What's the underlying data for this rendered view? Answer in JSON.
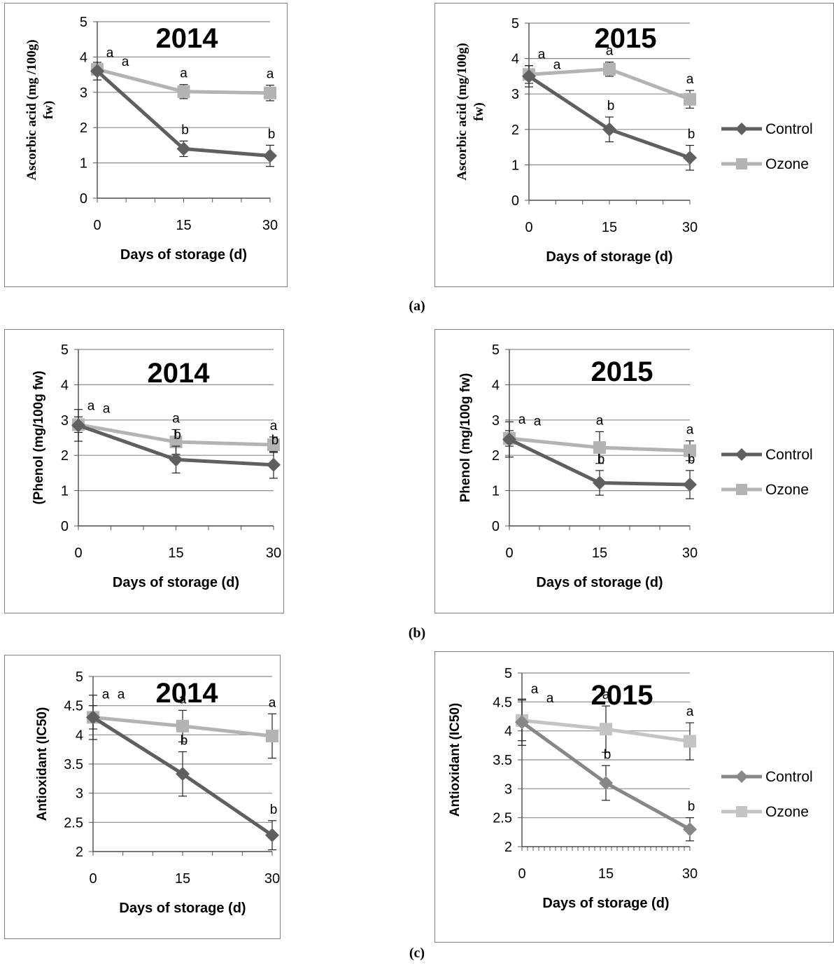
{
  "captions": [
    "(a)",
    "(b)",
    "(c)"
  ],
  "legend": {
    "control": "Control",
    "ozone": "Ozone"
  },
  "colors": {
    "control": "#5f5f5f",
    "ozone": "#b3b3b3",
    "control_c2015": "#878787",
    "ozone_c2015": "#c4c4c4",
    "grid": "#8c8c8c"
  },
  "chart_data": [
    {
      "type": "line",
      "title": "2014",
      "xlabel": "Days of storage (d)",
      "ylabel_lines": [
        "Ascorbic acid (mg /100g)",
        "fw)"
      ],
      "x": [
        0,
        15,
        30
      ],
      "ylim": [
        0,
        5
      ],
      "yticks": [
        "0",
        "1",
        "2",
        "3",
        "4",
        "5"
      ],
      "xticks": [
        "0",
        "15",
        "30"
      ],
      "series": [
        {
          "name": "Control",
          "values": [
            3.6,
            1.4,
            1.2
          ],
          "err": [
            0.25,
            0.22,
            0.3
          ],
          "letters": [
            "a",
            "b",
            "b"
          ]
        },
        {
          "name": "Ozone",
          "values": [
            3.65,
            3.02,
            2.98
          ],
          "err": [
            0.15,
            0.2,
            0.22
          ],
          "letters": [
            "a",
            "a",
            "a"
          ]
        }
      ]
    },
    {
      "type": "line",
      "title": "2015",
      "xlabel": "Days of storage (d)",
      "ylabel_lines": [
        "Ascorbic acid (mg/100g)",
        "fw)"
      ],
      "x": [
        0,
        15,
        30
      ],
      "ylim": [
        0,
        5
      ],
      "yticks": [
        "0",
        "1",
        "2",
        "3",
        "4",
        "5"
      ],
      "xticks": [
        "0",
        "15",
        "30"
      ],
      "series": [
        {
          "name": "Control",
          "values": [
            3.5,
            2.0,
            1.2
          ],
          "err": [
            0.3,
            0.35,
            0.35
          ],
          "letters": [
            "a",
            "b",
            "b"
          ]
        },
        {
          "name": "Ozone",
          "values": [
            3.55,
            3.7,
            2.85
          ],
          "err": [
            0.25,
            0.2,
            0.25
          ],
          "letters": [
            "a",
            "a",
            "a"
          ]
        }
      ]
    },
    {
      "type": "line",
      "title": "2014",
      "xlabel": "Days of storage (d)",
      "ylabel_lines": [
        "(Phenol (mg/100g fw)"
      ],
      "x": [
        0,
        15,
        30
      ],
      "ylim": [
        0,
        5
      ],
      "yticks": [
        "0",
        "1",
        "2",
        "3",
        "4",
        "5"
      ],
      "xticks": [
        "0",
        "15",
        "30"
      ],
      "series": [
        {
          "name": "Control",
          "values": [
            2.85,
            1.88,
            1.73
          ],
          "err": [
            0.45,
            0.38,
            0.38
          ],
          "letters": [
            "a",
            "b",
            "b"
          ]
        },
        {
          "name": "Ozone",
          "values": [
            2.87,
            2.38,
            2.3
          ],
          "err": [
            0.22,
            0.35,
            0.22
          ],
          "letters": [
            "a",
            "a",
            "a"
          ]
        }
      ]
    },
    {
      "type": "line",
      "title": "2015",
      "xlabel": "Days of storage (d)",
      "ylabel_lines": [
        "Phenol (mg/100g fw)"
      ],
      "x": [
        0,
        15,
        30
      ],
      "ylim": [
        0,
        5
      ],
      "yticks": [
        "0",
        "1",
        "2",
        "3",
        "4",
        "5"
      ],
      "xticks": [
        "0",
        "15",
        "30"
      ],
      "series": [
        {
          "name": "Control",
          "values": [
            2.45,
            1.22,
            1.17
          ],
          "err": [
            0.5,
            0.35,
            0.4
          ],
          "letters": [
            "a",
            "b",
            "b"
          ]
        },
        {
          "name": "Ozone",
          "values": [
            2.48,
            2.22,
            2.13
          ],
          "err": [
            0.22,
            0.45,
            0.28
          ],
          "letters": [
            "a",
            "a",
            "a"
          ]
        }
      ]
    },
    {
      "type": "line",
      "title": "2014",
      "xlabel": "Days of storage (d)",
      "ylabel_lines": [
        "Antioxidant (IC50)"
      ],
      "x": [
        0,
        15,
        30
      ],
      "ylim": [
        2,
        5
      ],
      "yticks": [
        "2",
        "2.5",
        "3",
        "3.5",
        "4",
        "4.5",
        "5"
      ],
      "xticks": [
        "0",
        "15",
        "30"
      ],
      "series": [
        {
          "name": "Control",
          "values": [
            4.3,
            3.33,
            2.28
          ],
          "err": [
            0.38,
            0.38,
            0.25
          ],
          "letters": [
            "a",
            "b",
            "b"
          ]
        },
        {
          "name": "Ozone",
          "values": [
            4.3,
            4.15,
            3.98
          ],
          "err": [
            0.2,
            0.27,
            0.38
          ],
          "letters": [
            "a",
            "a",
            "a"
          ]
        }
      ]
    },
    {
      "type": "line",
      "title": "2015",
      "xlabel": "Days of storage (d)",
      "ylabel_lines": [
        "Antioxidant (IC50)"
      ],
      "x": [
        0,
        15,
        30
      ],
      "ylim": [
        2,
        5
      ],
      "yticks": [
        "2",
        "2.5",
        "3",
        "3.5",
        "4",
        "4.5",
        "5"
      ],
      "xticks": [
        "0",
        "15",
        "30"
      ],
      "series": [
        {
          "name": "Control",
          "values": [
            4.15,
            3.1,
            2.3
          ],
          "err": [
            0.4,
            0.3,
            0.2
          ],
          "letters": [
            "a",
            "b",
            "b"
          ]
        },
        {
          "name": "Ozone",
          "values": [
            4.18,
            4.03,
            3.82
          ],
          "err": [
            0.35,
            0.4,
            0.32
          ],
          "letters": [
            "a",
            "a",
            "a"
          ]
        }
      ]
    }
  ]
}
